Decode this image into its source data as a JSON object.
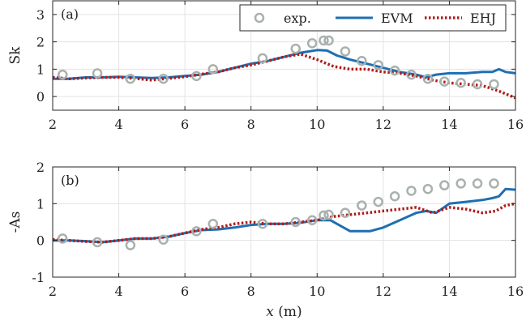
{
  "colors": {
    "exp": "#a9b1ad",
    "evm": "#1f6fb2",
    "ehj": "#b01c1c",
    "grid": "#e3e3e3",
    "axis": "#262626"
  },
  "chart_data": [
    {
      "type": "line",
      "panel_tag": "(a)",
      "ylabel": "Sk",
      "xlabel": "",
      "xlim": [
        2,
        16
      ],
      "ylim": [
        -0.5,
        3.5
      ],
      "xticks": [
        2,
        4,
        6,
        8,
        10,
        12,
        14,
        16
      ],
      "yticks": [
        0,
        1,
        2,
        3
      ],
      "grid": true,
      "legend": {
        "placement": "top-right",
        "entries": [
          "exp.",
          "EVM",
          "EHJ"
        ]
      },
      "series": [
        {
          "name": "exp.",
          "style": "markers",
          "x": [
            2.3,
            3.35,
            4.35,
            5.35,
            6.35,
            6.85,
            8.35,
            9.35,
            9.85,
            10.2,
            10.35,
            10.85,
            11.35,
            11.85,
            12.35,
            12.85,
            13.35,
            13.85,
            14.35,
            14.85,
            15.35
          ],
          "y": [
            0.8,
            0.85,
            0.65,
            0.65,
            0.75,
            1.0,
            1.4,
            1.75,
            1.95,
            2.05,
            2.05,
            1.65,
            1.3,
            1.15,
            0.95,
            0.8,
            0.65,
            0.55,
            0.5,
            0.45,
            0.45
          ]
        },
        {
          "name": "EVM",
          "style": "solid",
          "x": [
            2.0,
            2.5,
            3.0,
            3.5,
            4.0,
            4.5,
            5.0,
            5.5,
            6.0,
            6.5,
            7.0,
            7.5,
            8.0,
            8.5,
            9.0,
            9.5,
            10.0,
            10.3,
            10.6,
            11.0,
            11.5,
            12.0,
            12.5,
            13.0,
            13.3,
            13.6,
            14.0,
            14.5,
            15.0,
            15.3,
            15.5,
            15.7,
            16.0
          ],
          "y": [
            0.65,
            0.65,
            0.7,
            0.7,
            0.72,
            0.7,
            0.68,
            0.7,
            0.75,
            0.8,
            0.9,
            1.05,
            1.2,
            1.3,
            1.45,
            1.6,
            1.7,
            1.68,
            1.5,
            1.35,
            1.2,
            1.05,
            0.9,
            0.8,
            0.7,
            0.8,
            0.85,
            0.85,
            0.9,
            0.9,
            1.0,
            0.9,
            0.85
          ]
        },
        {
          "name": "EHJ",
          "style": "dotted",
          "x": [
            2.0,
            2.5,
            3.0,
            3.5,
            4.0,
            4.5,
            5.0,
            5.5,
            6.0,
            6.5,
            7.0,
            7.5,
            8.0,
            8.5,
            9.0,
            9.5,
            10.0,
            10.5,
            11.0,
            11.5,
            12.0,
            12.5,
            13.0,
            13.5,
            14.0,
            14.5,
            15.0,
            15.5,
            16.0
          ],
          "y": [
            0.7,
            0.65,
            0.68,
            0.7,
            0.7,
            0.66,
            0.6,
            0.66,
            0.72,
            0.82,
            0.9,
            1.05,
            1.15,
            1.3,
            1.45,
            1.55,
            1.35,
            1.1,
            1.0,
            1.0,
            0.9,
            0.85,
            0.75,
            0.6,
            0.5,
            0.45,
            0.4,
            0.2,
            -0.05
          ]
        }
      ]
    },
    {
      "type": "line",
      "panel_tag": "(b)",
      "ylabel": "-As",
      "xlabel": "x (m)",
      "xlim": [
        2,
        16
      ],
      "ylim": [
        -1,
        2
      ],
      "xticks": [
        2,
        4,
        6,
        8,
        10,
        12,
        14,
        16
      ],
      "yticks": [
        -1,
        0,
        1,
        2
      ],
      "grid": true,
      "series": [
        {
          "name": "exp.",
          "style": "markers",
          "x": [
            2.3,
            3.35,
            4.35,
            5.35,
            6.35,
            6.85,
            8.35,
            9.35,
            9.85,
            10.2,
            10.35,
            10.85,
            11.35,
            11.85,
            12.35,
            12.85,
            13.35,
            13.85,
            14.35,
            14.85,
            15.35
          ],
          "y": [
            0.05,
            -0.05,
            -0.13,
            0.02,
            0.25,
            0.45,
            0.45,
            0.5,
            0.55,
            0.68,
            0.7,
            0.75,
            0.95,
            1.05,
            1.2,
            1.35,
            1.4,
            1.5,
            1.55,
            1.55,
            1.55
          ]
        },
        {
          "name": "EVM",
          "style": "solid",
          "x": [
            2.0,
            2.5,
            3.0,
            3.5,
            4.0,
            4.5,
            5.0,
            5.5,
            6.0,
            6.5,
            7.0,
            7.5,
            8.0,
            8.5,
            9.0,
            9.5,
            10.0,
            10.4,
            10.8,
            11.0,
            11.3,
            11.6,
            12.0,
            12.5,
            13.0,
            13.3,
            13.6,
            14.0,
            14.5,
            15.0,
            15.3,
            15.5,
            15.7,
            16.0
          ],
          "y": [
            0.0,
            0.0,
            -0.02,
            -0.05,
            0.0,
            0.05,
            0.05,
            0.1,
            0.2,
            0.28,
            0.3,
            0.35,
            0.42,
            0.45,
            0.45,
            0.48,
            0.55,
            0.55,
            0.35,
            0.25,
            0.25,
            0.25,
            0.35,
            0.55,
            0.75,
            0.8,
            0.75,
            1.0,
            1.05,
            1.1,
            1.15,
            1.2,
            1.4,
            1.38
          ]
        },
        {
          "name": "EHJ",
          "style": "dotted",
          "x": [
            2.0,
            2.5,
            3.0,
            3.5,
            4.0,
            4.5,
            5.0,
            5.5,
            6.0,
            6.5,
            7.0,
            7.5,
            8.0,
            8.5,
            9.0,
            9.5,
            10.0,
            10.5,
            11.0,
            11.5,
            12.0,
            12.5,
            13.0,
            13.5,
            14.0,
            14.5,
            15.0,
            15.4,
            15.7,
            16.0
          ],
          "y": [
            0.02,
            0.0,
            -0.03,
            -0.05,
            0.0,
            0.05,
            0.05,
            0.1,
            0.2,
            0.3,
            0.35,
            0.45,
            0.5,
            0.45,
            0.45,
            0.5,
            0.55,
            0.65,
            0.7,
            0.75,
            0.8,
            0.85,
            0.9,
            0.75,
            0.9,
            0.85,
            0.75,
            0.8,
            0.95,
            1.0
          ]
        }
      ]
    }
  ]
}
